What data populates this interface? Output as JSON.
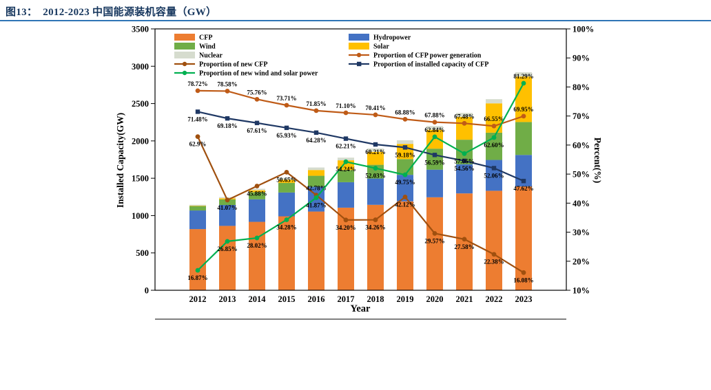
{
  "page": {
    "title": "图13：  2012-2023 中国能源装机容量（GW）",
    "accent_color": "#17375E",
    "rule_color": "#2E74B5"
  },
  "chart_data": {
    "type": "bar",
    "subtype": "stacked-bar-with-lines",
    "title": "",
    "x": [
      "2012",
      "2013",
      "2014",
      "2015",
      "2016",
      "2017",
      "2018",
      "2019",
      "2020",
      "2021",
      "2022",
      "2023"
    ],
    "xlabel": "Year",
    "ylabel_left": "Installed Capacity(GW)",
    "ylabel_right": "Percent(%)",
    "ylim_left": [
      0,
      3500
    ],
    "yticks_left": [
      0,
      500,
      1000,
      1500,
      2000,
      2500,
      3000,
      3500
    ],
    "ylim_right": [
      10,
      100
    ],
    "yticks_right": [
      "10%",
      "20%",
      "30%",
      "40%",
      "50%",
      "60%",
      "70%",
      "80%",
      "90%",
      "100%"
    ],
    "grid": false,
    "legend_position": "top-inside-two-columns",
    "bar_series": [
      {
        "name": "CFP",
        "color": "#ED7D31",
        "values": [
          819,
          862,
          916,
          990,
          1054,
          1106,
          1144,
          1190,
          1245,
          1297,
          1332,
          1390
        ]
      },
      {
        "name": "Hydropower",
        "color": "#4472C4",
        "values": [
          249,
          280,
          302,
          319,
          332,
          341,
          352,
          356,
          370,
          391,
          413,
          422
        ]
      },
      {
        "name": "Wind",
        "color": "#70AD47",
        "values": [
          61,
          75,
          96,
          129,
          147,
          163,
          184,
          210,
          281,
          328,
          365,
          441
        ]
      },
      {
        "name": "Solar",
        "color": "#FFC000",
        "values": [
          3,
          15,
          25,
          42,
          77,
          130,
          174,
          204,
          253,
          306,
          393,
          609
        ]
      },
      {
        "name": "Nuclear",
        "color": "#D6DCCE",
        "values": [
          13,
          15,
          20,
          26,
          34,
          36,
          45,
          49,
          50,
          53,
          56,
          57
        ]
      }
    ],
    "line_series": [
      {
        "name": "Proportion of CFP power generation",
        "color": "#BF5B17",
        "marker": "circle",
        "label_side": "above",
        "values": [
          78.72,
          78.58,
          75.76,
          73.71,
          71.85,
          71.1,
          70.41,
          68.88,
          67.88,
          67.48,
          66.55,
          69.95
        ],
        "labels": [
          "78.72%",
          "78.58%",
          "75.76%",
          "73.71%",
          "71.85%",
          "71.10%",
          "70.41%",
          "68.88%",
          "67.88%",
          "67.48%",
          "66.55%",
          "69.95%"
        ],
        "label_side_overrides": {}
      },
      {
        "name": "Proportion of new CFP",
        "color": "#A0500F",
        "marker": "circle",
        "label_side": "below",
        "values": [
          62.9,
          41.07,
          45.88,
          50.65,
          42.78,
          34.2,
          34.26,
          42.12,
          29.57,
          27.58,
          22.38,
          16.08
        ],
        "labels": [
          "62.9%",
          "41.07%",
          "45.88%",
          "50.65%",
          "42.78%",
          "34.20%",
          "34.26%",
          "42.12%",
          "29.57%",
          "27.58%",
          "22.38%",
          "16.08%"
        ],
        "label_side_overrides": {
          "4": "above"
        }
      },
      {
        "name": "Proportion of installed capacity of CFP",
        "color": "#1F3864",
        "marker": "square",
        "label_side": "below",
        "values": [
          71.48,
          69.18,
          67.61,
          65.93,
          64.28,
          62.21,
          60.21,
          59.18,
          56.59,
          54.56,
          52.06,
          47.62
        ],
        "labels": [
          "71.48%",
          "69.18%",
          "67.61%",
          "65.93%",
          "64.28%",
          "62.21%",
          "60.21%",
          "59.18%",
          "56.59%",
          "54.56%",
          "52.06%",
          "47.62%"
        ],
        "label_side_overrides": {}
      },
      {
        "name": "Proportion of new wind and solar power",
        "color": "#00B050",
        "marker": "circle",
        "label_side": "below",
        "values": [
          16.87,
          26.85,
          28.02,
          34.28,
          41.87,
          54.24,
          52.03,
          49.75,
          62.84,
          57.06,
          62.6,
          81.29
        ],
        "labels": [
          "16.87%",
          "26.85%",
          "28.02%",
          "34.28%",
          "41.87%",
          "54.24%",
          "52.03%",
          "49.75%",
          "62.84%",
          "57.06%",
          "62.60%",
          "81.29%"
        ],
        "label_side_overrides": {
          "8": "above",
          "11": "above"
        }
      }
    ],
    "legend_order": [
      [
        "CFP",
        "Hydropower"
      ],
      [
        "Wind",
        "Solar"
      ],
      [
        "Nuclear",
        "Proportion of CFP power generation"
      ],
      [
        "Proportion of new CFP",
        "Proportion of installed capacity of CFP"
      ],
      [
        "Proportion of new wind and solar power"
      ]
    ]
  }
}
